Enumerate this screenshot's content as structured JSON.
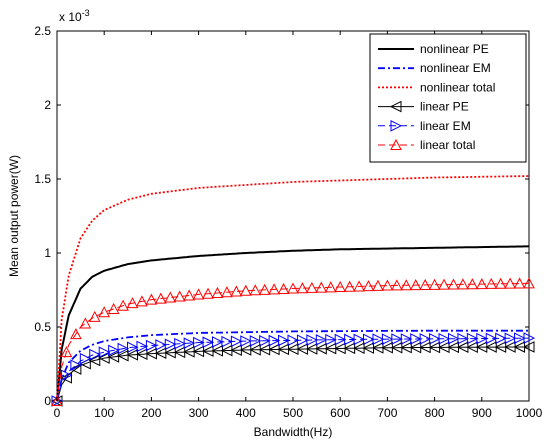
{
  "chart_data": {
    "type": "line",
    "title": "",
    "xlabel": "Bandwidth(Hz)",
    "ylabel": "Mean output power(W)",
    "y_exponent_label": "x 10",
    "y_exponent_power": "-3",
    "xlim": [
      0,
      1000
    ],
    "ylim": [
      0,
      2.5
    ],
    "xticks": [
      "0",
      "100",
      "200",
      "300",
      "400",
      "500",
      "600",
      "700",
      "800",
      "900",
      "1000"
    ],
    "yticks": [
      "0",
      "0.5",
      "1",
      "1.5",
      "2",
      "2.5"
    ],
    "grid": false,
    "legend_position": "top-right",
    "series": [
      {
        "name": "nonlinear PE",
        "color": "#000000",
        "style": "solid",
        "marker": "none",
        "x": [
          0,
          10,
          25,
          50,
          75,
          100,
          150,
          200,
          300,
          400,
          500,
          600,
          700,
          800,
          900,
          1000
        ],
        "values": [
          0,
          0.35,
          0.58,
          0.76,
          0.84,
          0.88,
          0.925,
          0.95,
          0.98,
          1.0,
          1.015,
          1.025,
          1.03,
          1.035,
          1.04,
          1.045
        ]
      },
      {
        "name": "nonlinear EM",
        "color": "#0000ff",
        "style": "dashdot",
        "marker": "none",
        "x": [
          0,
          10,
          25,
          50,
          75,
          100,
          150,
          200,
          300,
          400,
          500,
          600,
          700,
          800,
          900,
          1000
        ],
        "values": [
          0,
          0.15,
          0.26,
          0.34,
          0.38,
          0.405,
          0.43,
          0.445,
          0.46,
          0.465,
          0.47,
          0.472,
          0.474,
          0.475,
          0.475,
          0.475
        ]
      },
      {
        "name": "nonlinear total",
        "color": "#ff0000",
        "style": "dotted",
        "marker": "none",
        "x": [
          0,
          10,
          25,
          50,
          75,
          100,
          150,
          200,
          300,
          400,
          500,
          600,
          700,
          800,
          900,
          1000
        ],
        "values": [
          0,
          0.55,
          0.85,
          1.1,
          1.22,
          1.29,
          1.36,
          1.4,
          1.44,
          1.46,
          1.48,
          1.49,
          1.5,
          1.51,
          1.515,
          1.52
        ]
      },
      {
        "name": "linear PE",
        "color": "#000000",
        "style": "solid",
        "marker": "triangle-left",
        "x": [
          0,
          10,
          25,
          50,
          75,
          100,
          150,
          200,
          300,
          400,
          500,
          600,
          700,
          800,
          900,
          1000
        ],
        "values": [
          0,
          0.11,
          0.18,
          0.24,
          0.27,
          0.29,
          0.31,
          0.32,
          0.335,
          0.345,
          0.35,
          0.355,
          0.36,
          0.362,
          0.364,
          0.365
        ]
      },
      {
        "name": "linear EM",
        "color": "#0000ff",
        "style": "dashed",
        "marker": "triangle-right",
        "x": [
          0,
          10,
          25,
          50,
          75,
          100,
          150,
          200,
          300,
          400,
          500,
          600,
          700,
          800,
          900,
          1000
        ],
        "values": [
          0,
          0.12,
          0.2,
          0.27,
          0.31,
          0.33,
          0.36,
          0.375,
          0.395,
          0.405,
          0.41,
          0.415,
          0.418,
          0.42,
          0.422,
          0.425
        ]
      },
      {
        "name": "linear total",
        "color": "#ff0000",
        "style": "dashed",
        "marker": "triangle-up",
        "x": [
          0,
          10,
          25,
          50,
          75,
          100,
          150,
          200,
          300,
          400,
          500,
          600,
          700,
          800,
          900,
          1000
        ],
        "values": [
          0,
          0.23,
          0.38,
          0.5,
          0.56,
          0.6,
          0.655,
          0.685,
          0.72,
          0.745,
          0.76,
          0.77,
          0.78,
          0.785,
          0.79,
          0.795
        ]
      }
    ]
  }
}
